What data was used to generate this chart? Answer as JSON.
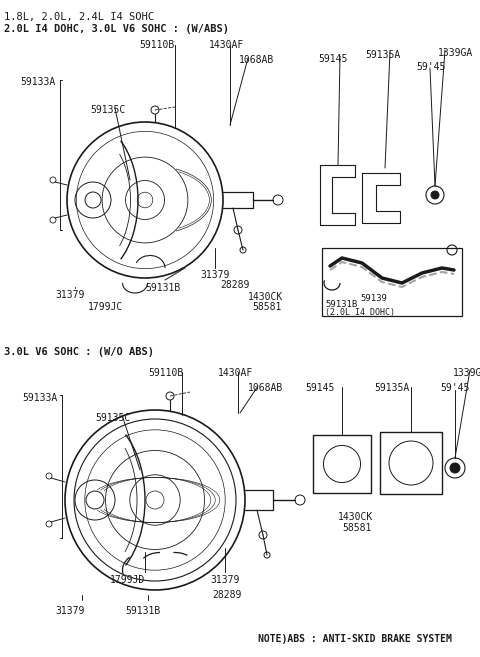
{
  "bg_color": "#ffffff",
  "line_color": "#1a1a1a",
  "text_color": "#1a1a1a",
  "title_line1": "1.8L, 2.0L, 2.4L I4 SOHC",
  "title_line2": "2.0L I4 DOHC, 3.0L V6 SOHC : (W/ABS)",
  "section2_title": "3.0L V6 SOHC : (W/O ABS)",
  "note_text": "NOTE)ABS : ANTI-SKID BRAKE SYSTEM",
  "figw": 4.8,
  "figh": 6.57,
  "dpi": 100
}
